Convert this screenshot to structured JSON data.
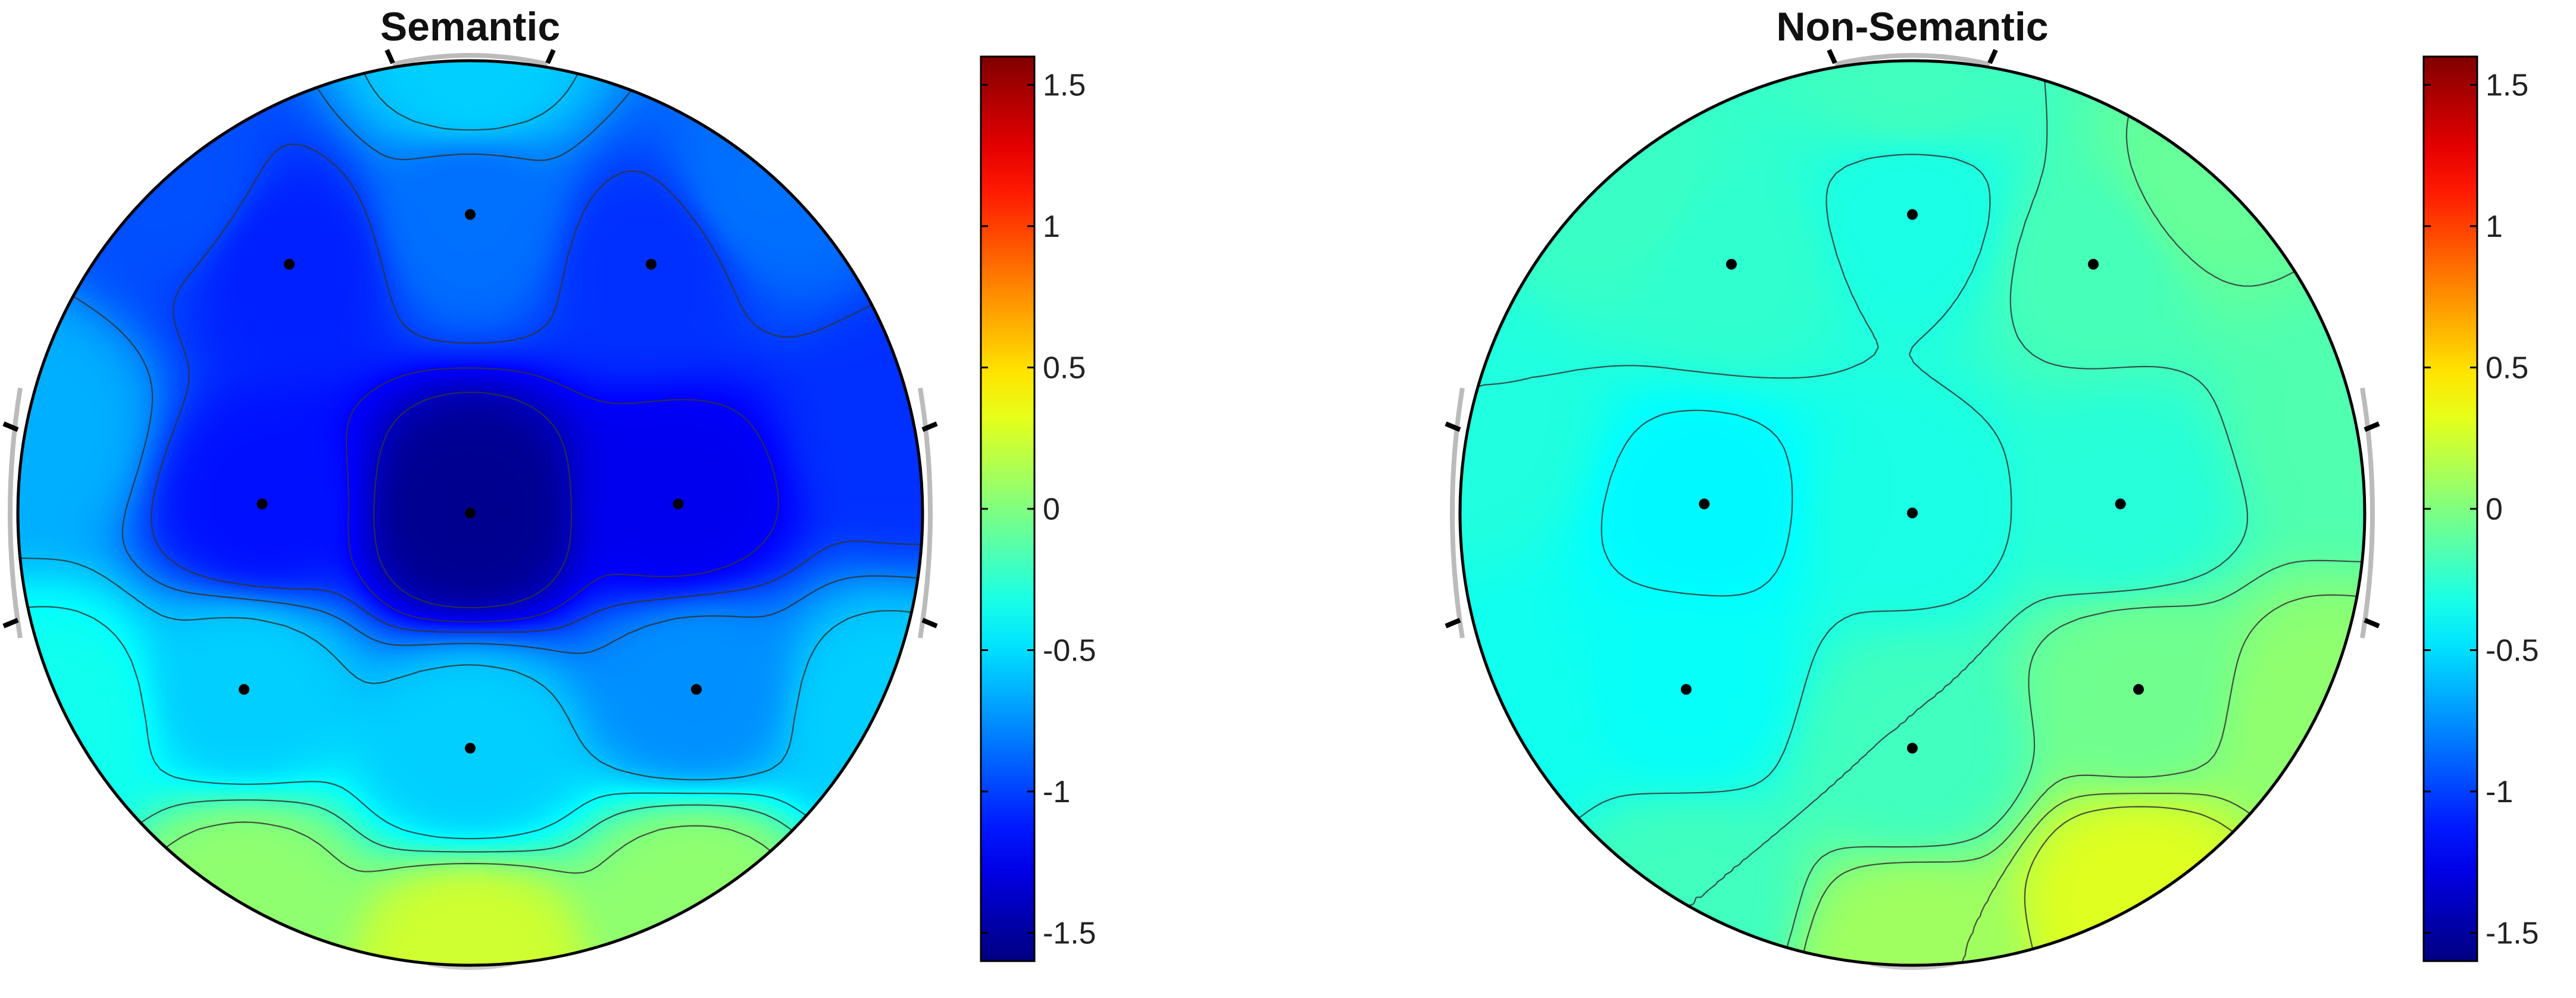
{
  "chart_data": [
    {
      "type": "heatmap",
      "subtype": "topographic-head-map",
      "title": "Semantic",
      "colormap": "jet",
      "clim": [
        -1.6,
        1.6
      ],
      "colorbar_ticks": [
        1.5,
        1,
        0.5,
        0,
        -0.5,
        -1,
        -1.5
      ],
      "colorbar_tick_labels": [
        "1.5",
        "1",
        "0.5",
        "0",
        "-0.5",
        "-1",
        "-1.5"
      ],
      "electrodes": [
        {
          "x": 0.0,
          "y": 0.66,
          "value": -0.85
        },
        {
          "x": -0.4,
          "y": 0.55,
          "value": -1.1
        },
        {
          "x": 0.4,
          "y": 0.55,
          "value": -1.05
        },
        {
          "x": -0.46,
          "y": 0.02,
          "value": -1.15
        },
        {
          "x": 0.0,
          "y": 0.0,
          "value": -1.55
        },
        {
          "x": 0.46,
          "y": 0.02,
          "value": -1.25
        },
        {
          "x": -0.5,
          "y": -0.39,
          "value": -0.55
        },
        {
          "x": 0.5,
          "y": -0.39,
          "value": -0.75
        },
        {
          "x": 0.0,
          "y": -0.52,
          "value": -0.55
        }
      ],
      "boundary": [
        {
          "x": 0.0,
          "y": 0.98,
          "value": -0.55
        },
        {
          "x": 0.65,
          "y": 0.72,
          "value": -0.85
        },
        {
          "x": 0.96,
          "y": 0.18,
          "value": -1.05
        },
        {
          "x": 0.9,
          "y": -0.45,
          "value": -0.55
        },
        {
          "x": 0.5,
          "y": -0.86,
          "value": 0.05
        },
        {
          "x": 0.0,
          "y": -0.99,
          "value": 0.25
        },
        {
          "x": -0.5,
          "y": -0.86,
          "value": 0.05
        },
        {
          "x": -0.9,
          "y": -0.45,
          "value": -0.35
        },
        {
          "x": -0.96,
          "y": 0.18,
          "value": -0.65
        },
        {
          "x": -0.65,
          "y": 0.72,
          "value": -0.95
        }
      ],
      "contour_levels": [
        -1.4,
        -1.2,
        -1.0,
        -0.8,
        -0.6,
        -0.4,
        -0.2,
        0.0
      ]
    },
    {
      "type": "heatmap",
      "subtype": "topographic-head-map",
      "title": "Non-Semantic",
      "colormap": "jet",
      "clim": [
        -1.6,
        1.6
      ],
      "colorbar_ticks": [
        1.5,
        1,
        0.5,
        0,
        -0.5,
        -1,
        -1.5
      ],
      "colorbar_tick_labels": [
        "1.5",
        "1",
        "0.5",
        "0",
        "-0.5",
        "-1",
        "-1.5"
      ],
      "electrodes": [
        {
          "x": 0.0,
          "y": 0.66,
          "value": -0.32
        },
        {
          "x": -0.4,
          "y": 0.55,
          "value": -0.25
        },
        {
          "x": 0.4,
          "y": 0.55,
          "value": -0.18
        },
        {
          "x": -0.46,
          "y": 0.02,
          "value": -0.42
        },
        {
          "x": 0.0,
          "y": 0.0,
          "value": -0.32
        },
        {
          "x": 0.46,
          "y": 0.02,
          "value": -0.28
        },
        {
          "x": -0.5,
          "y": -0.39,
          "value": -0.38
        },
        {
          "x": 0.5,
          "y": -0.39,
          "value": -0.05
        },
        {
          "x": 0.0,
          "y": -0.52,
          "value": -0.2
        }
      ],
      "boundary": [
        {
          "x": 0.0,
          "y": 0.98,
          "value": -0.2
        },
        {
          "x": 0.65,
          "y": 0.72,
          "value": -0.08
        },
        {
          "x": 0.96,
          "y": 0.18,
          "value": -0.15
        },
        {
          "x": 0.9,
          "y": -0.45,
          "value": 0.05
        },
        {
          "x": 0.5,
          "y": -0.86,
          "value": 0.3
        },
        {
          "x": 0.0,
          "y": -0.99,
          "value": 0.1
        },
        {
          "x": -0.5,
          "y": -0.86,
          "value": -0.2
        },
        {
          "x": -0.9,
          "y": -0.45,
          "value": -0.35
        },
        {
          "x": -0.96,
          "y": 0.18,
          "value": -0.3
        },
        {
          "x": -0.65,
          "y": 0.72,
          "value": -0.22
        }
      ],
      "contour_levels": [
        -0.4,
        -0.3,
        -0.2,
        -0.1,
        0.0,
        0.1,
        0.2,
        0.3
      ]
    }
  ]
}
